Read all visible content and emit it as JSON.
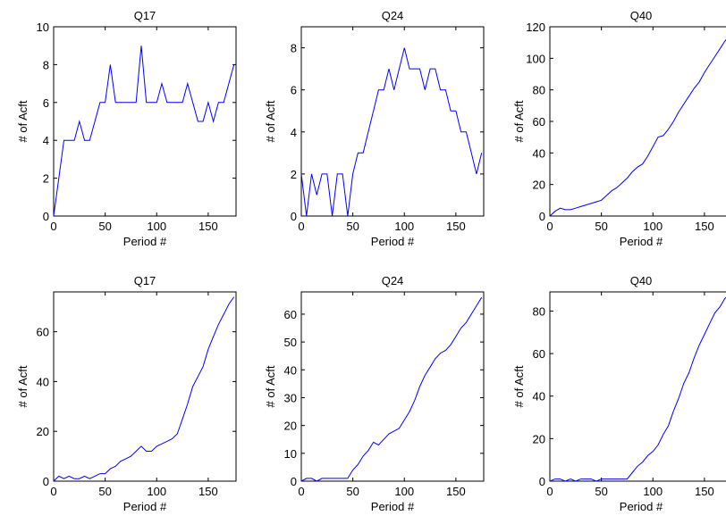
{
  "chart_data": [
    {
      "type": "line",
      "title": "Q17",
      "xlabel": "Period #",
      "ylabel": "# of Acft",
      "color": "#0000ff",
      "x": [
        0,
        5,
        10,
        15,
        20,
        25,
        30,
        35,
        40,
        45,
        50,
        55,
        60,
        65,
        70,
        75,
        80,
        85,
        90,
        95,
        100,
        105,
        110,
        115,
        120,
        125,
        130,
        135,
        140,
        145,
        150,
        155,
        160,
        165,
        170,
        175
      ],
      "values": [
        0,
        2,
        4,
        4,
        4,
        5,
        4,
        4,
        5,
        6,
        6,
        8,
        6,
        6,
        6,
        6,
        6,
        9,
        6,
        6,
        6,
        7,
        6,
        6,
        6,
        6,
        7,
        6,
        5,
        5,
        6,
        5,
        6,
        6,
        7,
        8
      ],
      "xlim": [
        0,
        177
      ],
      "ylim": [
        0,
        10
      ],
      "xticks": [
        0,
        50,
        100,
        150
      ],
      "yticks": [
        0,
        2,
        4,
        6,
        8,
        10
      ]
    },
    {
      "type": "line",
      "title": "Q24",
      "xlabel": "Period #",
      "ylabel": "# of Acft",
      "color": "#0000ff",
      "x": [
        0,
        5,
        10,
        15,
        20,
        25,
        30,
        35,
        40,
        45,
        50,
        55,
        60,
        65,
        70,
        75,
        80,
        85,
        90,
        95,
        100,
        105,
        110,
        115,
        120,
        125,
        130,
        135,
        140,
        145,
        150,
        155,
        160,
        165,
        170,
        175
      ],
      "values": [
        2,
        0,
        2,
        1,
        2,
        2,
        0,
        2,
        2,
        0,
        2,
        3,
        3,
        4,
        5,
        6,
        6,
        7,
        6,
        7,
        8,
        7,
        7,
        7,
        6,
        7,
        7,
        6,
        6,
        5,
        5,
        4,
        4,
        3,
        2,
        3
      ],
      "xlim": [
        0,
        177
      ],
      "ylim": [
        0,
        9
      ],
      "xticks": [
        0,
        50,
        100,
        150
      ],
      "yticks": [
        0,
        2,
        4,
        6,
        8
      ]
    },
    {
      "type": "line",
      "title": "Q40",
      "xlabel": "Period #",
      "ylabel": "# of Acft",
      "color": "#0000ff",
      "x": [
        0,
        5,
        10,
        15,
        20,
        25,
        30,
        35,
        40,
        45,
        50,
        55,
        60,
        65,
        70,
        75,
        80,
        85,
        90,
        95,
        100,
        105,
        110,
        115,
        120,
        125,
        130,
        135,
        140,
        145,
        150,
        155,
        160,
        165,
        170,
        175
      ],
      "values": [
        0,
        3,
        5,
        4,
        4,
        5,
        6,
        7,
        8,
        9,
        10,
        13,
        16,
        18,
        21,
        24,
        28,
        31,
        33,
        38,
        44,
        50,
        51,
        55,
        60,
        66,
        71,
        76,
        81,
        85,
        91,
        96,
        101,
        106,
        111,
        115
      ],
      "xlim": [
        0,
        177
      ],
      "ylim": [
        0,
        120
      ],
      "xticks": [
        0,
        50,
        100,
        150
      ],
      "yticks": [
        0,
        20,
        40,
        60,
        80,
        100,
        120
      ]
    },
    {
      "type": "line",
      "title": "Q17",
      "xlabel": "Period #",
      "ylabel": "# of Acft",
      "color": "#0000ff",
      "x": [
        0,
        5,
        10,
        15,
        20,
        25,
        30,
        35,
        40,
        45,
        50,
        55,
        60,
        65,
        70,
        75,
        80,
        85,
        90,
        95,
        100,
        105,
        110,
        115,
        120,
        125,
        130,
        135,
        140,
        145,
        150,
        155,
        160,
        165,
        170,
        175
      ],
      "values": [
        0,
        2,
        1,
        2,
        1,
        1,
        2,
        1,
        2,
        3,
        3,
        5,
        6,
        8,
        9,
        10,
        12,
        14,
        12,
        12,
        14,
        15,
        16,
        17,
        19,
        25,
        31,
        38,
        42,
        46,
        53,
        58,
        63,
        67,
        71,
        74
      ],
      "xlim": [
        0,
        177
      ],
      "ylim": [
        0,
        76
      ],
      "xticks": [
        0,
        50,
        100,
        150
      ],
      "yticks": [
        0,
        20,
        40,
        60
      ]
    },
    {
      "type": "line",
      "title": "Q24",
      "xlabel": "Period #",
      "ylabel": "# of Acft",
      "color": "#0000ff",
      "x": [
        0,
        5,
        10,
        15,
        20,
        25,
        30,
        35,
        40,
        45,
        50,
        55,
        60,
        65,
        70,
        75,
        80,
        85,
        90,
        95,
        100,
        105,
        110,
        115,
        120,
        125,
        130,
        135,
        140,
        145,
        150,
        155,
        160,
        165,
        170,
        175
      ],
      "values": [
        0,
        1,
        1,
        0,
        1,
        1,
        1,
        1,
        1,
        1,
        4,
        6,
        9,
        11,
        14,
        13,
        15,
        17,
        18,
        19,
        22,
        25,
        29,
        34,
        38,
        41,
        44,
        46,
        47,
        49,
        52,
        55,
        57,
        60,
        63,
        66
      ],
      "xlim": [
        0,
        177
      ],
      "ylim": [
        0,
        68
      ],
      "xticks": [
        0,
        50,
        100,
        150
      ],
      "yticks": [
        0,
        10,
        20,
        30,
        40,
        50,
        60
      ]
    },
    {
      "type": "line",
      "title": "Q40",
      "xlabel": "Period #",
      "ylabel": "# of Acft",
      "color": "#0000ff",
      "x": [
        0,
        5,
        10,
        15,
        20,
        25,
        30,
        35,
        40,
        45,
        50,
        55,
        60,
        65,
        70,
        75,
        80,
        85,
        90,
        95,
        100,
        105,
        110,
        115,
        120,
        125,
        130,
        135,
        140,
        145,
        150,
        155,
        160,
        165,
        170,
        175
      ],
      "values": [
        0,
        1,
        1,
        0,
        1,
        0,
        1,
        1,
        1,
        0,
        1,
        1,
        1,
        1,
        1,
        1,
        4,
        7,
        9,
        12,
        14,
        17,
        22,
        26,
        33,
        39,
        46,
        51,
        58,
        64,
        69,
        74,
        79,
        82,
        86,
        88
      ],
      "xlim": [
        0,
        177
      ],
      "ylim": [
        0,
        89
      ],
      "xticks": [
        0,
        50,
        100,
        150
      ],
      "yticks": [
        0,
        20,
        40,
        60,
        80
      ]
    }
  ]
}
